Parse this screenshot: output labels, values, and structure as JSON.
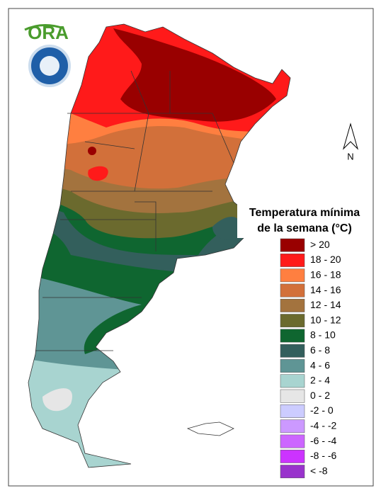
{
  "logo": {
    "text": "ORA"
  },
  "north_arrow": {
    "label": "N"
  },
  "legend": {
    "title_lines": [
      "Temperatura mínima",
      "de la semana (°C)"
    ],
    "items": [
      {
        "label": "> 20",
        "color": "#990000"
      },
      {
        "label": "18 - 20",
        "color": "#ff1a1a"
      },
      {
        "label": "16 - 18",
        "color": "#ff7f40"
      },
      {
        "label": "14 - 16",
        "color": "#d2703a"
      },
      {
        "label": "12 - 14",
        "color": "#a3733e"
      },
      {
        "label": "10 - 12",
        "color": "#6b6a2e"
      },
      {
        "label": "8 - 10",
        "color": "#0f6630"
      },
      {
        "label": "6 - 8",
        "color": "#335f5c"
      },
      {
        "label": "4 - 6",
        "color": "#5f9595"
      },
      {
        "label": "2 - 4",
        "color": "#a8d4d0"
      },
      {
        "label": "0 - 2",
        "color": "#e6e6e6"
      },
      {
        "label": "-2 - 0",
        "color": "#ccccff"
      },
      {
        "label": "-4 - -2",
        "color": "#cc99ff"
      },
      {
        "label": "-6 - -4",
        "color": "#cc66ff"
      },
      {
        "label": "-8 - -6",
        "color": "#cc33ff"
      },
      {
        "label": "< -8",
        "color": "#9933cc"
      }
    ]
  }
}
